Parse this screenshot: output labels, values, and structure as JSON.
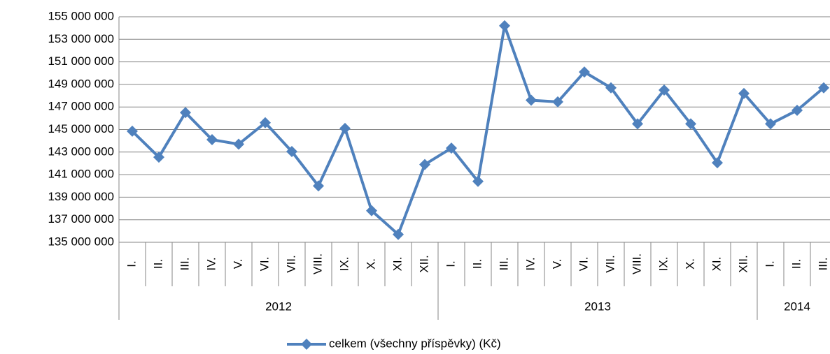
{
  "chart_data": {
    "type": "line",
    "categories": [
      "I.",
      "II.",
      "III.",
      "IV.",
      "V.",
      "VI.",
      "VII.",
      "VIII.",
      "IX.",
      "X.",
      "XI.",
      "XII.",
      "I.",
      "II.",
      "III.",
      "IV.",
      "V.",
      "VI.",
      "VII.",
      "VIII.",
      "IX.",
      "X.",
      "XI.",
      "XII.",
      "I.",
      "II.",
      "III."
    ],
    "groups": [
      {
        "label": "2012",
        "count": 12
      },
      {
        "label": "2013",
        "count": 12
      },
      {
        "label": "2014",
        "count": 3
      }
    ],
    "series": [
      {
        "name": "celkem (všechny příspěvky) (Kč)",
        "color": "#4f81bd",
        "values": [
          144850000,
          142550000,
          146500000,
          144100000,
          143700000,
          145600000,
          143050000,
          140000000,
          145100000,
          137800000,
          135700000,
          141900000,
          143350000,
          140400000,
          154200000,
          147600000,
          147450000,
          150100000,
          148700000,
          145500000,
          148500000,
          145500000,
          142050000,
          148200000,
          145500000,
          146700000,
          148700000
        ]
      }
    ],
    "ylim": [
      135000000,
      155000000
    ],
    "yticks": [
      {
        "value": 135000000,
        "label": "135 000 000"
      },
      {
        "value": 137000000,
        "label": "137 000 000"
      },
      {
        "value": 139000000,
        "label": "139 000 000"
      },
      {
        "value": 141000000,
        "label": "141 000 000"
      },
      {
        "value": 143000000,
        "label": "143 000 000"
      },
      {
        "value": 145000000,
        "label": "145 000 000"
      },
      {
        "value": 147000000,
        "label": "147 000 000"
      },
      {
        "value": 149000000,
        "label": "149 000 000"
      },
      {
        "value": 151000000,
        "label": "151 000 000"
      },
      {
        "value": 153000000,
        "label": "153 000 000"
      },
      {
        "value": 155000000,
        "label": "155 000 000"
      }
    ],
    "grid": true,
    "legend": "bottom"
  }
}
